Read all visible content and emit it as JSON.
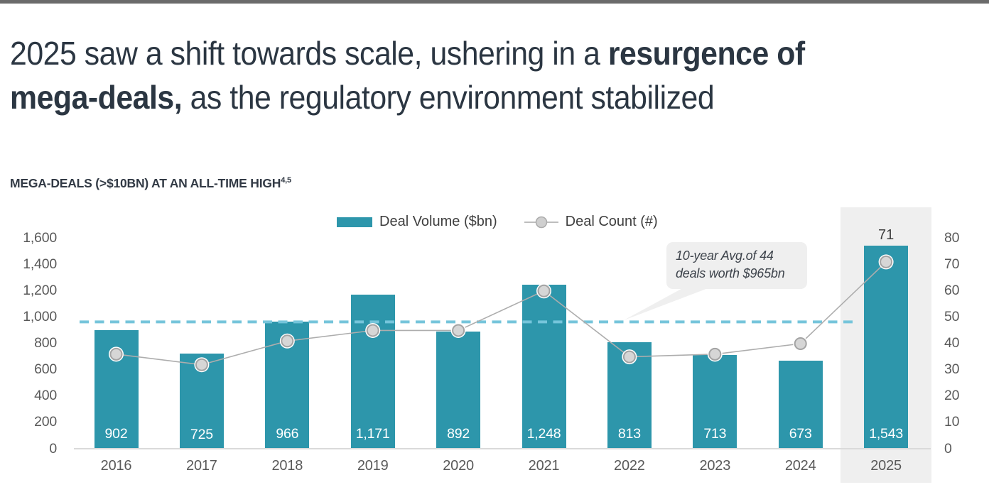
{
  "title": {
    "part1": "2025 saw a shift towards scale, ushering in a ",
    "part2_bold": "resurgence of",
    "part3_bold": "mega-deals,",
    "part4": " as the regulatory environment stabilized"
  },
  "section_heading": {
    "text": "MEGA-DEALS (>$10BN) AT AN ALL-TIME HIGH",
    "superscript": "4,5"
  },
  "legend": {
    "items": [
      {
        "label": "Deal Volume ($bn)",
        "swatch": "bar",
        "color": "#2d96ab"
      },
      {
        "label": "Deal Count (#)",
        "swatch": "line-marker",
        "color": "#adadad"
      }
    ]
  },
  "annotation": {
    "line1": "10-year Avg.of 44",
    "line2": "deals worth $965bn"
  },
  "chart_data": {
    "type": "combo (bar + line)",
    "categories": [
      "2016",
      "2017",
      "2018",
      "2019",
      "2020",
      "2021",
      "2022",
      "2023",
      "2024",
      "2025"
    ],
    "series": [
      {
        "name": "Deal Volume ($bn)",
        "type": "bar",
        "axis": "left",
        "color": "#2d96ab",
        "values": [
          902,
          725,
          966,
          1171,
          892,
          1248,
          813,
          713,
          673,
          1543
        ],
        "value_labels": [
          "902",
          "725",
          "966",
          "1,171",
          "892",
          "1,248",
          "813",
          "713",
          "673",
          "1,543"
        ]
      },
      {
        "name": "Deal Count (#)",
        "type": "line",
        "axis": "right",
        "color": "#adadad",
        "marker_fill": "#d6d6d6",
        "marker_ring": "#a3a3a3",
        "values": [
          36,
          32,
          41,
          45,
          45,
          60,
          35,
          36,
          40,
          71
        ]
      }
    ],
    "left_axis": {
      "min": 0,
      "max": 1600,
      "tick_step": 200,
      "tick_labels": [
        "0",
        "200",
        "400",
        "600",
        "800",
        "1,000",
        "1,200",
        "1,400",
        "1,600"
      ]
    },
    "right_axis": {
      "min": 0,
      "max": 80,
      "tick_step": 10,
      "tick_labels": [
        "0",
        "10",
        "20",
        "30",
        "40",
        "50",
        "60",
        "70",
        "80"
      ]
    },
    "average_line": {
      "value": 965,
      "style": "dashed",
      "color": "#76c5db"
    },
    "highlighted_category": "2025",
    "last_point_label": "71",
    "legend_position": "top-center",
    "grid": "off"
  }
}
